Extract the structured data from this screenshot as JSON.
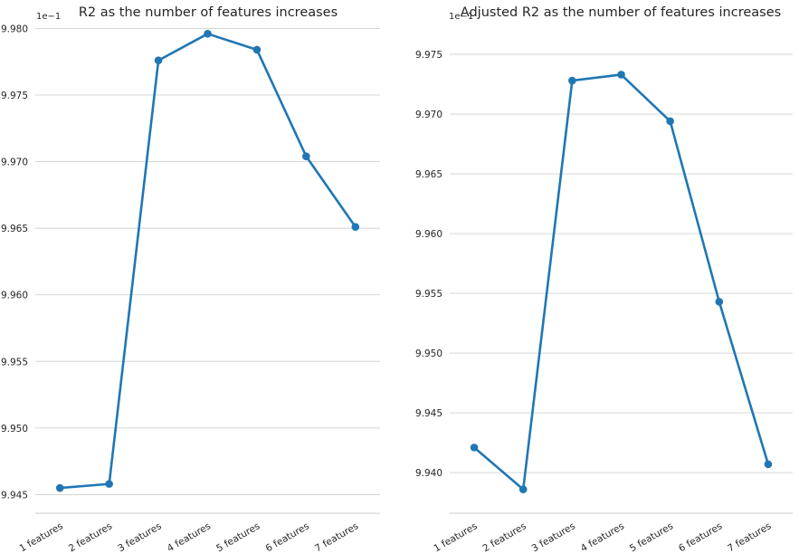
{
  "chart_data": [
    {
      "type": "line",
      "title": "R2 as the number of features increases",
      "xlabel": "",
      "ylabel": "",
      "offset_text": "1e−1",
      "categories": [
        "1 features",
        "2 features",
        "3 features",
        "4 features",
        "5 features",
        "6 features",
        "7 features"
      ],
      "series": [
        {
          "values": [
            9.9455,
            9.9458,
            9.9776,
            9.9796,
            9.9784,
            9.9704,
            9.9651
          ]
        }
      ],
      "yticks": [
        "9.945",
        "9.950",
        "9.955",
        "9.960",
        "9.965",
        "9.970",
        "9.975",
        "9.980"
      ],
      "ylim": [
        9.9436,
        9.9803
      ],
      "grid": "horizontal",
      "color": "#1f77b4"
    },
    {
      "type": "line",
      "title": "Adjusted R2 as the number of features increases",
      "xlabel": "",
      "ylabel": "",
      "offset_text": "1e−1",
      "categories": [
        "1 features",
        "2 features",
        "3 features",
        "4 features",
        "5 features",
        "6 features",
        "7 features"
      ],
      "series": [
        {
          "values": [
            9.9421,
            9.9386,
            9.9728,
            9.9733,
            9.9694,
            9.9543,
            9.9407
          ]
        }
      ],
      "yticks": [
        "9.940",
        "9.945",
        "9.950",
        "9.955",
        "9.960",
        "9.965",
        "9.970",
        "9.975"
      ],
      "ylim": [
        9.9366,
        9.9775
      ],
      "grid": "horizontal",
      "color": "#1f77b4"
    }
  ]
}
